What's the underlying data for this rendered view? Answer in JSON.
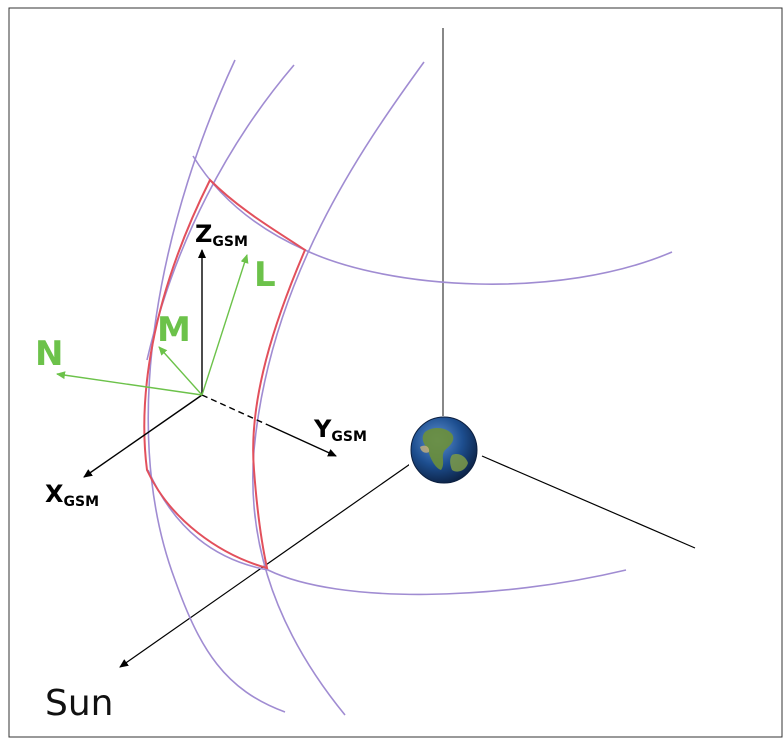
{
  "labels": {
    "z_axis": "Z",
    "z_sub": "GSM",
    "y_axis": "Y",
    "y_sub": "GSM",
    "x_axis": "X",
    "x_sub": "GSM",
    "l_axis": "L",
    "m_axis": "M",
    "n_axis": "N",
    "sun": "Sun"
  },
  "colors": {
    "field_lines": "#a08cd2",
    "region_boundary": "#e2505c",
    "lmn_axes": "#6cc24a",
    "gsm_axes": "#000000",
    "earth_ocean": "#1d4e8f",
    "earth_land": "#6b8f3a"
  },
  "icons": {
    "earth": "earth-globe-icon"
  }
}
